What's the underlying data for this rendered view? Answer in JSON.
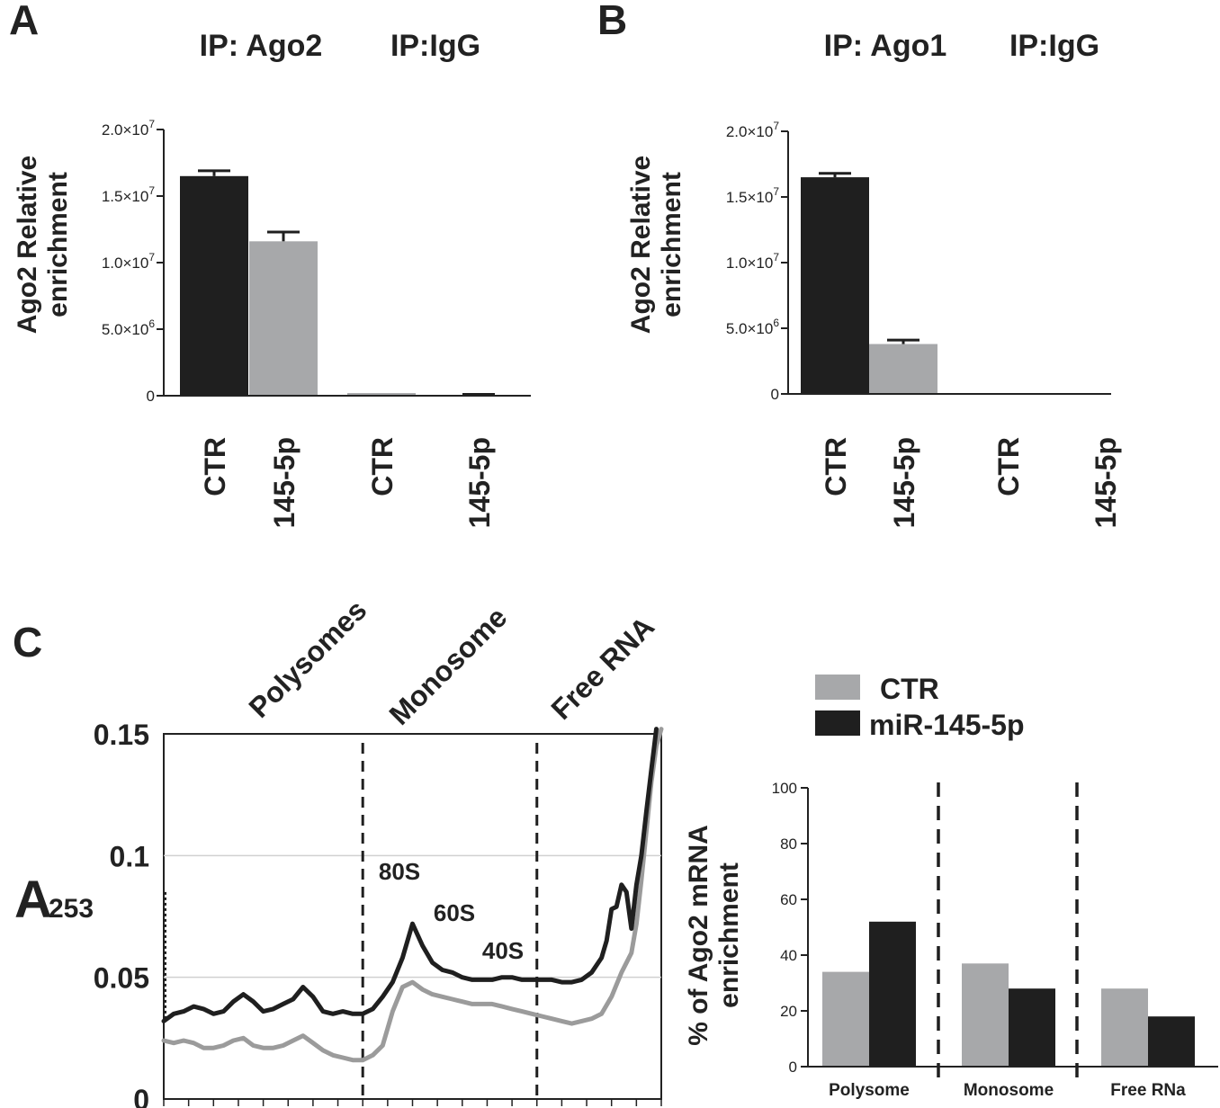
{
  "colors": {
    "dark": "#1f1f1f",
    "light": "#a7a8aa",
    "grid": "#d0d0d0",
    "trace_ctr": "#9b9b9b"
  },
  "chart_data": [
    {
      "panel": "A",
      "type": "bar",
      "groups": [
        "IP: Ago2",
        "IP:IgG"
      ],
      "categories": [
        "CTR",
        "145-5p",
        "CTR",
        "145-5p"
      ],
      "values": [
        16500000,
        11600000,
        200000,
        50000
      ],
      "errors": [
        400000,
        700000,
        0,
        50000
      ],
      "bar_colors": [
        "dark",
        "light",
        "light",
        "light"
      ],
      "ylabel": [
        "Ago2 Relative",
        "enrichment"
      ],
      "ylim": [
        0,
        20000000
      ],
      "yticks": [
        {
          "v": 0,
          "label": "0"
        },
        {
          "v": 5000000,
          "label": "5.0×10",
          "exp": "6"
        },
        {
          "v": 10000000,
          "label": "1.0×10",
          "exp": "7"
        },
        {
          "v": 15000000,
          "label": "1.5×10",
          "exp": "7"
        },
        {
          "v": 20000000,
          "label": "2.0×10",
          "exp": "7"
        }
      ]
    },
    {
      "panel": "B",
      "type": "bar",
      "groups": [
        "IP: Ago1",
        "IP:IgG"
      ],
      "categories": [
        "CTR",
        "145-5p",
        "CTR",
        "145-5p"
      ],
      "values": [
        16500000,
        3800000,
        0,
        0
      ],
      "errors": [
        300000,
        300000,
        0,
        0
      ],
      "bar_colors": [
        "dark",
        "light",
        "light",
        "light"
      ],
      "ylabel": [
        "Ago2 Relative",
        "enrichment"
      ],
      "ylim": [
        0,
        20000000
      ],
      "yticks": [
        {
          "v": 0,
          "label": "0"
        },
        {
          "v": 5000000,
          "label": "5.0×10",
          "exp": "6"
        },
        {
          "v": 10000000,
          "label": "1.0×10",
          "exp": "7"
        },
        {
          "v": 15000000,
          "label": "1.5×10",
          "exp": "7"
        },
        {
          "v": 20000000,
          "label": "2.0×10",
          "exp": "7"
        }
      ]
    },
    {
      "panel": "C",
      "type": "line",
      "ylabel": "A",
      "ylabel_sub": "253",
      "regions": [
        "Polysomes",
        "Monosome",
        "Free RNA"
      ],
      "peaks": [
        "80S",
        "60S",
        "40S"
      ],
      "ylim": [
        0,
        0.15
      ],
      "yticks": [
        {
          "v": 0,
          "label": "0"
        },
        {
          "v": 0.05,
          "label": "0.05"
        },
        {
          "v": 0.1,
          "label": "0.1"
        },
        {
          "v": 0.15,
          "label": "0.15"
        }
      ],
      "xlim": [
        0,
        100
      ],
      "boundaries": [
        40,
        75
      ],
      "series": [
        {
          "name": "miR-145-5p",
          "color": "dark",
          "x": [
            0,
            2,
            4,
            6,
            8,
            10,
            12,
            14,
            16,
            18,
            20,
            22,
            24,
            26,
            28,
            30,
            32,
            34,
            36,
            38,
            40,
            42,
            44,
            46,
            48,
            50,
            52,
            54,
            56,
            58,
            60,
            62,
            64,
            66,
            68,
            70,
            72,
            74,
            76,
            78,
            80,
            82,
            84,
            86,
            88,
            89,
            90,
            91,
            92,
            93,
            94,
            95,
            96,
            97,
            98,
            99
          ],
          "y": [
            0.032,
            0.035,
            0.036,
            0.038,
            0.037,
            0.035,
            0.036,
            0.04,
            0.043,
            0.04,
            0.036,
            0.037,
            0.039,
            0.041,
            0.046,
            0.042,
            0.036,
            0.035,
            0.036,
            0.035,
            0.035,
            0.037,
            0.042,
            0.048,
            0.058,
            0.072,
            0.063,
            0.056,
            0.053,
            0.052,
            0.05,
            0.049,
            0.049,
            0.049,
            0.05,
            0.05,
            0.049,
            0.049,
            0.049,
            0.049,
            0.048,
            0.048,
            0.049,
            0.052,
            0.058,
            0.065,
            0.078,
            0.079,
            0.088,
            0.085,
            0.07,
            0.088,
            0.1,
            0.118,
            0.135,
            0.152
          ]
        },
        {
          "name": "CTR",
          "color": "trace_ctr",
          "x": [
            0,
            2,
            4,
            6,
            8,
            10,
            12,
            14,
            16,
            18,
            20,
            22,
            24,
            26,
            28,
            30,
            32,
            34,
            36,
            38,
            40,
            42,
            44,
            46,
            48,
            50,
            52,
            54,
            56,
            58,
            60,
            62,
            64,
            66,
            68,
            70,
            72,
            74,
            76,
            78,
            80,
            82,
            84,
            86,
            88,
            90,
            92,
            94,
            95,
            96,
            97,
            98,
            99,
            100
          ],
          "y": [
            0.024,
            0.023,
            0.024,
            0.023,
            0.021,
            0.021,
            0.022,
            0.024,
            0.025,
            0.022,
            0.021,
            0.021,
            0.022,
            0.024,
            0.026,
            0.023,
            0.02,
            0.018,
            0.017,
            0.016,
            0.016,
            0.018,
            0.022,
            0.036,
            0.046,
            0.048,
            0.045,
            0.043,
            0.042,
            0.041,
            0.04,
            0.039,
            0.039,
            0.039,
            0.038,
            0.037,
            0.036,
            0.035,
            0.034,
            0.033,
            0.032,
            0.031,
            0.032,
            0.033,
            0.035,
            0.042,
            0.052,
            0.06,
            0.072,
            0.09,
            0.11,
            0.13,
            0.145,
            0.152
          ]
        }
      ]
    },
    {
      "panel": "C-right",
      "type": "bar",
      "categories": [
        "Polysome",
        "Monosome",
        "Free RNa"
      ],
      "ylabel": [
        "% of Ago2 mRNA",
        "enrichment"
      ],
      "ylim": [
        0,
        100
      ],
      "yticks": [
        0,
        20,
        40,
        60,
        80,
        100
      ],
      "legend": [
        {
          "name": "CTR",
          "color": "light"
        },
        {
          "name": "miR-145-5p",
          "color": "dark"
        }
      ],
      "series": [
        {
          "name": "CTR",
          "color": "light",
          "values": [
            34,
            37,
            28
          ]
        },
        {
          "name": "miR-145-5p",
          "color": "dark",
          "values": [
            52,
            28,
            18
          ]
        }
      ]
    }
  ]
}
